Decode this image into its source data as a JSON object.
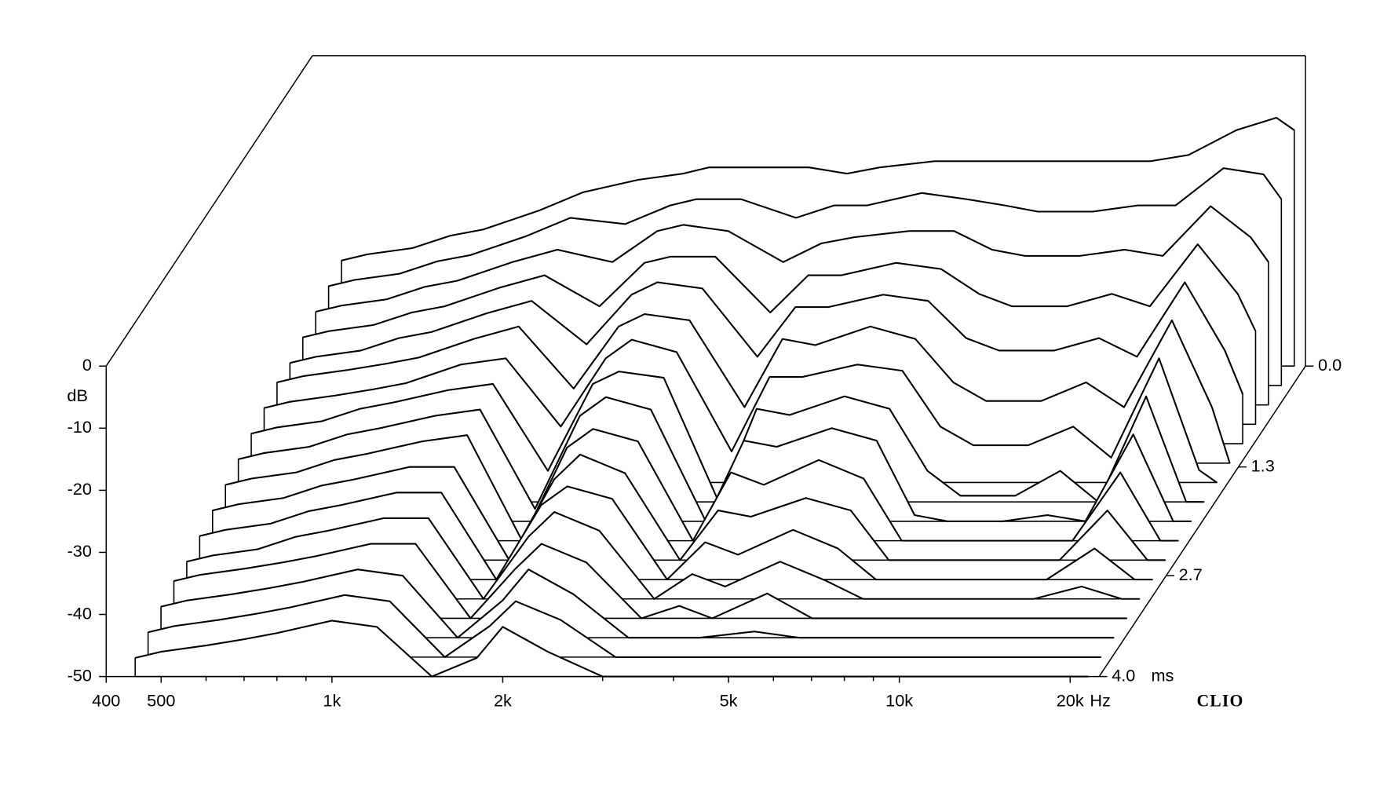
{
  "chart_data": {
    "type": "waterfall",
    "brand": "CLIO",
    "xlabel": "Hz",
    "ylabel": "dB",
    "zlabel": "ms",
    "color": "#000000",
    "xlog": true,
    "xlim": [
      400,
      22500
    ],
    "xticks": [
      400,
      500,
      {
        "value": 1000,
        "label": "1k"
      },
      {
        "value": 2000,
        "label": "2k"
      },
      {
        "value": 5000,
        "label": "5k"
      },
      {
        "value": 10000,
        "label": "10k"
      },
      {
        "value": 20000,
        "label": "20k"
      }
    ],
    "xminorticks": [
      600,
      700,
      800,
      900,
      3000,
      4000,
      6000,
      7000,
      8000,
      9000
    ],
    "ylim": [
      -50,
      0
    ],
    "yticks": [
      0,
      -10,
      -20,
      -30,
      -40,
      -50
    ],
    "zlim": [
      0,
      4
    ],
    "zticks": [
      {
        "value": 0,
        "label": "0.0"
      },
      1.3,
      2.7,
      {
        "value": 4,
        "label": "4.0"
      }
    ],
    "x": [
      450,
      500,
      600,
      700,
      800,
      1000,
      1200,
      1500,
      1800,
      2000,
      2400,
      3000,
      3500,
      4000,
      5000,
      6000,
      7000,
      8000,
      10000,
      12000,
      14000,
      17000,
      20000,
      21500
    ],
    "z": [
      0,
      0.25,
      0.5,
      0.75,
      1,
      1.25,
      1.5,
      1.75,
      2,
      2.25,
      2.5,
      2.75,
      3,
      3.25,
      3.5,
      3.75,
      4
    ],
    "series": [
      {
        "values": [
          -33,
          -32,
          -31,
          -29,
          -28,
          -25,
          -22,
          -20,
          -19,
          -18,
          -18,
          -18,
          -19,
          -18,
          -17,
          -17,
          -17,
          -17,
          -17,
          -17,
          -16,
          -12,
          -10,
          -12
        ]
      },
      {
        "values": [
          -34,
          -33,
          -32,
          -30,
          -29,
          -26,
          -23,
          -24,
          -21,
          -20,
          -20,
          -23,
          -21,
          -21,
          -19,
          -20,
          -21,
          -22,
          -22,
          -21,
          -21,
          -15,
          -16,
          -20
        ]
      },
      {
        "values": [
          -35,
          -34,
          -33,
          -31,
          -30,
          -27,
          -25,
          -27,
          -22,
          -21,
          -22,
          -27,
          -24,
          -23,
          -22,
          -22,
          -25,
          -26,
          -26,
          -25,
          -26,
          -18,
          -23,
          -27
        ]
      },
      {
        "values": [
          -36,
          -35,
          -34,
          -32,
          -31,
          -28,
          -26,
          -31,
          -24,
          -23,
          -23,
          -32,
          -26,
          -26,
          -24,
          -25,
          -29,
          -31,
          -31,
          -29,
          -31,
          -21,
          -29,
          -35
        ]
      },
      {
        "values": [
          -37,
          -36,
          -35,
          -33,
          -32,
          -29,
          -27,
          -34,
          -26,
          -24,
          -25,
          -36,
          -28,
          -28,
          -26,
          -27,
          -33,
          -35,
          -35,
          -33,
          -36,
          -24,
          -35,
          -42
        ]
      },
      {
        "values": [
          -37,
          -36,
          -35,
          -34,
          -33,
          -30,
          -28,
          -38,
          -28,
          -26,
          -27,
          -41,
          -30,
          -31,
          -28,
          -30,
          -37,
          -40,
          -40,
          -37,
          -41,
          -27,
          -41,
          -50
        ]
      },
      {
        "values": [
          -38,
          -37,
          -36,
          -35,
          -34,
          -31,
          -30,
          -41,
          -30,
          -27,
          -29,
          -45,
          -33,
          -33,
          -31,
          -32,
          -41,
          -44,
          -44,
          -41,
          -46,
          -30,
          -48,
          -50
        ]
      },
      {
        "values": [
          -39,
          -38,
          -37,
          -35,
          -34,
          -32,
          -31,
          -45,
          -31,
          -29,
          -30,
          -50,
          -35,
          -36,
          -33,
          -35,
          -45,
          -49,
          -49,
          -45,
          -50,
          -33,
          -50,
          -50
        ]
      },
      {
        "values": [
          -40,
          -39,
          -38,
          -36,
          -35,
          -33,
          -32,
          -48,
          -33,
          -30,
          -32,
          -50,
          -37,
          -38,
          -35,
          -37,
          -49,
          -50,
          -50,
          -49,
          -50,
          -36,
          -50,
          -50
        ]
      },
      {
        "values": [
          -41,
          -40,
          -39,
          -37,
          -36,
          -34,
          -33,
          -50,
          -35,
          -32,
          -34,
          -50,
          -39,
          -41,
          -37,
          -40,
          -50,
          -50,
          -50,
          -50,
          -50,
          -39,
          -50,
          -50
        ]
      },
      {
        "values": [
          -42,
          -41,
          -40,
          -38,
          -37,
          -35,
          -35,
          -50,
          -37,
          -33,
          -36,
          -50,
          -42,
          -43,
          -40,
          -42,
          -50,
          -50,
          -50,
          -50,
          -50,
          -42,
          -50,
          -50
        ]
      },
      {
        "values": [
          -43,
          -42,
          -41,
          -39,
          -38,
          -36,
          -36,
          -50,
          -38,
          -35,
          -37,
          -50,
          -44,
          -46,
          -42,
          -45,
          -50,
          -50,
          -50,
          -50,
          -50,
          -45,
          -50,
          -50
        ]
      },
      {
        "values": [
          -44,
          -43,
          -42,
          -40,
          -39,
          -37,
          -37,
          -50,
          -40,
          -36,
          -39,
          -50,
          -46,
          -48,
          -44,
          -47,
          -50,
          -50,
          -50,
          -50,
          -50,
          -48,
          -50,
          -50
        ]
      },
      {
        "values": [
          -44,
          -43,
          -42,
          -41,
          -40,
          -38,
          -38,
          -50,
          -42,
          -38,
          -41,
          -50,
          -48,
          -50,
          -46,
          -50,
          -50,
          -50,
          -50,
          -50,
          -50,
          -50,
          -50,
          -50
        ]
      },
      {
        "values": [
          -45,
          -44,
          -43,
          -42,
          -41,
          -39,
          -40,
          -50,
          -44,
          -39,
          -43,
          -50,
          -50,
          -50,
          -49,
          -50,
          -50,
          -50,
          -50,
          -50,
          -50,
          -50,
          -50,
          -50
        ]
      },
      {
        "values": [
          -46,
          -45,
          -44,
          -43,
          -42,
          -40,
          -41,
          -50,
          -45,
          -41,
          -44,
          -50,
          -50,
          -50,
          -50,
          -50,
          -50,
          -50,
          -50,
          -50,
          -50,
          -50,
          -50,
          -50
        ]
      },
      {
        "values": [
          -47,
          -46,
          -45,
          -44,
          -43,
          -41,
          -42,
          -50,
          -47,
          -42,
          -46,
          -50,
          -50,
          -50,
          -50,
          -50,
          -50,
          -50,
          -50,
          -50,
          -50,
          -50,
          -50,
          -50
        ]
      }
    ]
  }
}
